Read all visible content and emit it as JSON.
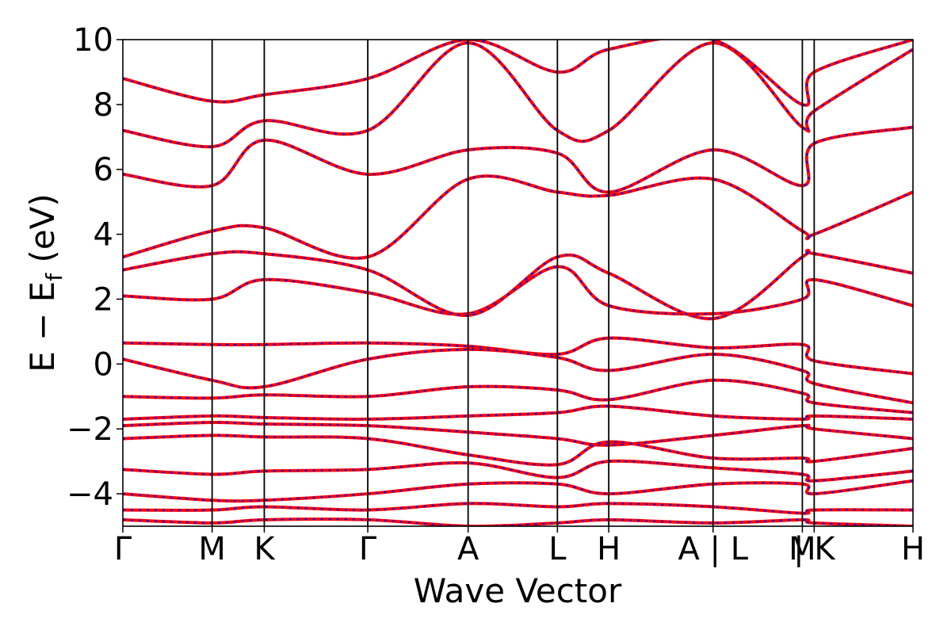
{
  "chart_data": {
    "type": "line",
    "xlabel": "Wave Vector",
    "ylabel_text": "E − E",
    "ylabel_subscript": "f",
    "ylabel_unit": " (eV)",
    "ylim": [
      -5,
      10
    ],
    "yticks": [
      {
        "value": 10,
        "label": "10"
      },
      {
        "value": 8,
        "label": "8"
      },
      {
        "value": 6,
        "label": "6"
      },
      {
        "value": 4,
        "label": "4"
      },
      {
        "value": 2,
        "label": "2"
      },
      {
        "value": 0,
        "label": "0"
      },
      {
        "value": -2,
        "label": "−2"
      },
      {
        "value": -4,
        "label": "−4"
      }
    ],
    "kpath": [
      {
        "label": "Γ",
        "pos": 0.0
      },
      {
        "label": "M",
        "pos": 0.113
      },
      {
        "label": "K",
        "pos": 0.179
      },
      {
        "label": "Γ",
        "pos": 0.31
      },
      {
        "label": "A",
        "pos": 0.437
      },
      {
        "label": "L",
        "pos": 0.55
      },
      {
        "label": "H",
        "pos": 0.615
      },
      {
        "label": "A | L",
        "pos": 0.747
      },
      {
        "label": "M",
        "pos": 0.86
      },
      {
        "label": "| K",
        "pos": 0.875
      },
      {
        "label": "H",
        "pos": 1.0
      }
    ],
    "grid": false,
    "series": [
      {
        "color": "#ff0000",
        "style": "solid"
      },
      {
        "color": "#0000ff",
        "style": "dotted"
      }
    ],
    "bands_sampled": [
      {
        "k": [
          0,
          0.113,
          0.179,
          0.31,
          0.437,
          0.55,
          0.615,
          0.747,
          0.86,
          0.875,
          1.0
        ],
        "e": [
          0.65,
          0.6,
          0.6,
          0.65,
          0.55,
          0.3,
          0.8,
          0.5,
          0.6,
          0.1,
          -0.3
        ]
      },
      {
        "k": [
          0,
          0.113,
          0.179,
          0.31,
          0.437,
          0.55,
          0.615,
          0.747,
          0.86,
          0.875,
          1.0
        ],
        "e": [
          0.15,
          -0.5,
          -0.7,
          0.15,
          0.45,
          0.2,
          -0.2,
          0.3,
          -0.2,
          -0.6,
          -1.2
        ]
      },
      {
        "k": [
          0,
          0.113,
          0.179,
          0.31,
          0.437,
          0.55,
          0.615,
          0.747,
          0.86,
          0.875,
          1.0
        ],
        "e": [
          -1.0,
          -1.05,
          -0.95,
          -1.0,
          -0.7,
          -0.8,
          -1.1,
          -0.5,
          -0.9,
          -1.2,
          -1.5
        ]
      },
      {
        "k": [
          0,
          0.113,
          0.179,
          0.31,
          0.437,
          0.55,
          0.615,
          0.747,
          0.86,
          0.875,
          1.0
        ],
        "e": [
          -1.7,
          -1.6,
          -1.65,
          -1.7,
          -1.6,
          -1.5,
          -1.3,
          -1.6,
          -1.7,
          -1.6,
          -1.7
        ]
      },
      {
        "k": [
          0,
          0.113,
          0.179,
          0.31,
          0.437,
          0.55,
          0.615,
          0.747,
          0.86,
          0.875,
          1.0
        ],
        "e": [
          -1.9,
          -1.8,
          -1.85,
          -1.9,
          -2.1,
          -2.3,
          -2.5,
          -2.2,
          -1.9,
          -2.0,
          -2.3
        ]
      },
      {
        "k": [
          0,
          0.113,
          0.179,
          0.31,
          0.437,
          0.55,
          0.615,
          0.747,
          0.86,
          0.875,
          1.0
        ],
        "e": [
          -2.3,
          -2.2,
          -2.25,
          -2.3,
          -2.8,
          -3.1,
          -2.4,
          -2.9,
          -2.9,
          -3.0,
          -2.6
        ]
      },
      {
        "k": [
          0,
          0.113,
          0.179,
          0.31,
          0.437,
          0.55,
          0.615,
          0.747,
          0.86,
          0.875,
          1.0
        ],
        "e": [
          -3.25,
          -3.4,
          -3.3,
          -3.25,
          -3.05,
          -3.5,
          -3.0,
          -3.2,
          -3.4,
          -3.6,
          -3.3
        ]
      },
      {
        "k": [
          0,
          0.113,
          0.179,
          0.31,
          0.437,
          0.55,
          0.615,
          0.747,
          0.86,
          0.875,
          1.0
        ],
        "e": [
          -4.0,
          -4.2,
          -4.2,
          -4.0,
          -3.7,
          -3.7,
          -4.0,
          -3.7,
          -3.7,
          -4.0,
          -3.6
        ]
      },
      {
        "k": [
          0,
          0.113,
          0.179,
          0.31,
          0.437,
          0.55,
          0.615,
          0.747,
          0.86,
          0.875,
          1.0
        ],
        "e": [
          -4.5,
          -4.5,
          -4.4,
          -4.5,
          -4.3,
          -4.4,
          -4.3,
          -4.4,
          -4.6,
          -4.5,
          -4.5
        ]
      },
      {
        "k": [
          0,
          0.113,
          0.179,
          0.31,
          0.437,
          0.55,
          0.615,
          0.747,
          0.86,
          0.875,
          1.0
        ],
        "e": [
          -4.8,
          -4.9,
          -4.8,
          -4.8,
          -5.0,
          -4.9,
          -4.8,
          -4.9,
          -4.8,
          -4.9,
          -5.0
        ]
      },
      {
        "k": [
          0,
          0.113,
          0.179,
          0.31,
          0.437,
          0.55,
          0.615,
          0.747,
          0.86,
          0.875,
          1.0
        ],
        "e": [
          2.1,
          2.0,
          2.6,
          2.2,
          1.55,
          3.0,
          1.8,
          1.55,
          2.0,
          2.6,
          1.8
        ]
      },
      {
        "k": [
          0,
          0.113,
          0.179,
          0.31,
          0.437,
          0.55,
          0.615,
          0.747,
          0.86,
          0.875,
          1.0
        ],
        "e": [
          2.9,
          3.4,
          3.4,
          2.9,
          1.5,
          3.3,
          2.8,
          1.4,
          3.3,
          3.4,
          2.8
        ]
      },
      {
        "k": [
          0,
          0.113,
          0.179,
          0.31,
          0.437,
          0.55,
          0.615,
          0.747,
          0.86,
          0.875,
          1.0
        ],
        "e": [
          3.3,
          4.1,
          4.2,
          3.3,
          5.7,
          5.3,
          5.2,
          5.7,
          4.1,
          4.0,
          5.3
        ]
      },
      {
        "k": [
          0,
          0.113,
          0.179,
          0.31,
          0.437,
          0.55,
          0.615,
          0.747,
          0.86,
          0.875,
          1.0
        ],
        "e": [
          5.85,
          5.5,
          6.9,
          5.85,
          6.6,
          6.5,
          5.3,
          6.6,
          5.5,
          6.8,
          7.3
        ]
      },
      {
        "k": [
          0,
          0.113,
          0.179,
          0.31,
          0.437,
          0.55,
          0.615,
          0.747,
          0.86,
          0.875,
          1.0
        ],
        "e": [
          7.2,
          6.7,
          7.5,
          7.2,
          9.9,
          7.2,
          7.2,
          9.9,
          7.3,
          7.8,
          9.7
        ]
      },
      {
        "k": [
          0,
          0.113,
          0.179,
          0.31,
          0.437,
          0.55,
          0.615,
          0.747,
          0.86,
          0.875,
          1.0
        ],
        "e": [
          8.8,
          8.1,
          8.3,
          8.8,
          10.0,
          9.0,
          9.7,
          10.0,
          8.0,
          9.0,
          10.0
        ]
      }
    ]
  }
}
